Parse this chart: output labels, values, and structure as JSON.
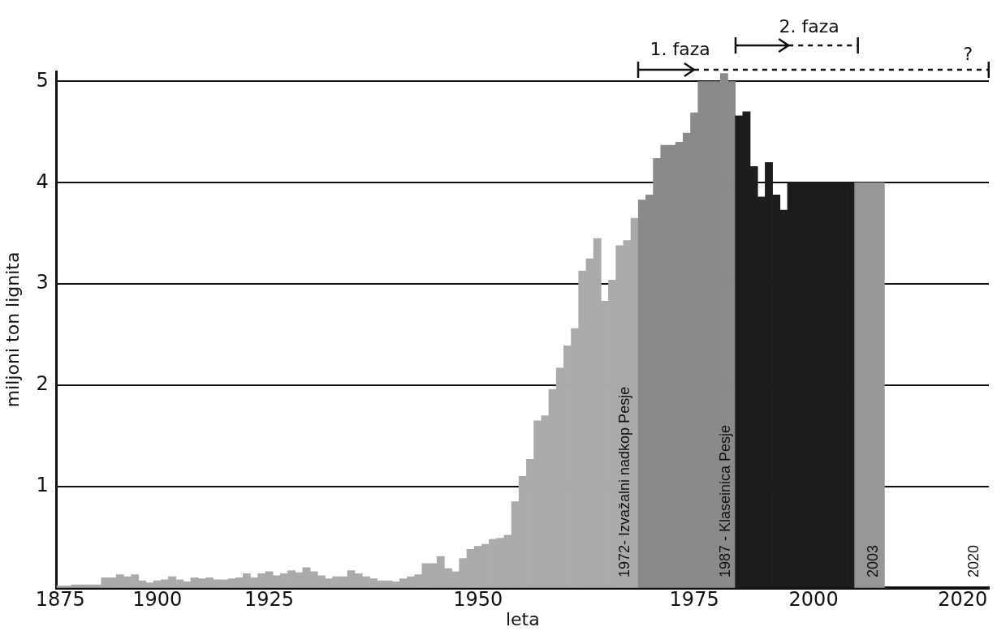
{
  "chart_data": {
    "type": "bar",
    "xlabel": "leta",
    "ylabel": "miljoni ton lignita",
    "categories": [
      "1875",
      null,
      null,
      null,
      null,
      null,
      null,
      null,
      null,
      null,
      null,
      null,
      null,
      "1900",
      null,
      null,
      null,
      null,
      null,
      null,
      null,
      null,
      null,
      null,
      null,
      null,
      null,
      null,
      "1925",
      null,
      null,
      null,
      null,
      null,
      null,
      null,
      null,
      null,
      null,
      null,
      null,
      null,
      null,
      null,
      null,
      null,
      null,
      null,
      null,
      null,
      null,
      null,
      null,
      null,
      null,
      null,
      "1950",
      null,
      null,
      null,
      null,
      null,
      null,
      null,
      null,
      null,
      null,
      null,
      null,
      null,
      null,
      null,
      null,
      null,
      null,
      null,
      null,
      null,
      null,
      null,
      null,
      null,
      null,
      null,
      null,
      "1975",
      null,
      null,
      null,
      null,
      null,
      null,
      null,
      null,
      null,
      null,
      null,
      null,
      null,
      null,
      null,
      "2000",
      null,
      null,
      null,
      null,
      null,
      null,
      null,
      null,
      null,
      null,
      null,
      null,
      null,
      null,
      null,
      null,
      null,
      null,
      null,
      "2020",
      null,
      null,
      null
    ],
    "values": [
      0.02,
      0.02,
      0.03,
      0.03,
      0.03,
      0.03,
      0.1,
      0.1,
      0.13,
      0.11,
      0.13,
      0.07,
      0.05,
      0.07,
      0.08,
      0.11,
      0.08,
      0.06,
      0.1,
      0.09,
      0.1,
      0.08,
      0.08,
      0.09,
      0.1,
      0.14,
      0.1,
      0.14,
      0.16,
      0.12,
      0.14,
      0.17,
      0.15,
      0.2,
      0.16,
      0.12,
      0.09,
      0.11,
      0.11,
      0.17,
      0.14,
      0.11,
      0.09,
      0.07,
      0.07,
      0.06,
      0.09,
      0.11,
      0.13,
      0.24,
      0.24,
      0.31,
      0.19,
      0.16,
      0.29,
      0.38,
      0.41,
      0.43,
      0.48,
      0.49,
      0.52,
      0.85,
      1.1,
      1.27,
      1.65,
      1.7,
      1.96,
      2.17,
      2.39,
      2.56,
      3.13,
      3.25,
      3.45,
      2.83,
      3.04,
      3.38,
      3.43,
      3.65,
      3.83,
      3.88,
      4.24,
      4.37,
      4.37,
      4.4,
      4.49,
      4.69,
      5.0,
      5.0,
      5.0,
      5.08,
      5.0,
      4.66,
      4.7,
      4.16,
      3.86,
      4.2,
      3.88,
      3.73,
      4.0,
      4.0,
      4.0,
      4.0,
      4.0,
      4.0,
      4.0,
      4.0,
      4.0,
      4.0,
      4.0,
      4.0,
      4.0,
      null,
      null,
      null,
      null,
      null,
      null,
      null,
      null,
      null,
      null,
      null,
      null,
      null,
      null
    ],
    "colors": [
      "#aaaaaa",
      "#aaaaaa",
      "#aaaaaa",
      "#aaaaaa",
      "#aaaaaa",
      "#aaaaaa",
      "#aaaaaa",
      "#aaaaaa",
      "#aaaaaa",
      "#aaaaaa",
      "#aaaaaa",
      "#aaaaaa",
      "#aaaaaa",
      "#aaaaaa",
      "#aaaaaa",
      "#aaaaaa",
      "#aaaaaa",
      "#aaaaaa",
      "#aaaaaa",
      "#aaaaaa",
      "#aaaaaa",
      "#aaaaaa",
      "#aaaaaa",
      "#aaaaaa",
      "#aaaaaa",
      "#aaaaaa",
      "#aaaaaa",
      "#aaaaaa",
      "#aaaaaa",
      "#aaaaaa",
      "#aaaaaa",
      "#aaaaaa",
      "#aaaaaa",
      "#aaaaaa",
      "#aaaaaa",
      "#aaaaaa",
      "#aaaaaa",
      "#aaaaaa",
      "#aaaaaa",
      "#aaaaaa",
      "#aaaaaa",
      "#aaaaaa",
      "#aaaaaa",
      "#aaaaaa",
      "#aaaaaa",
      "#aaaaaa",
      "#aaaaaa",
      "#aaaaaa",
      "#aaaaaa",
      "#aaaaaa",
      "#aaaaaa",
      "#aaaaaa",
      "#aaaaaa",
      "#aaaaaa",
      "#aaaaaa",
      "#aaaaaa",
      "#aaaaaa",
      "#aaaaaa",
      "#aaaaaa",
      "#aaaaaa",
      "#aaaaaa",
      "#aaaaaa",
      "#aaaaaa",
      "#aaaaaa",
      "#aaaaaa",
      "#aaaaaa",
      "#aaaaaa",
      "#aaaaaa",
      "#aaaaaa",
      "#aaaaaa",
      "#aaaaaa",
      "#aaaaaa",
      "#aaaaaa",
      "#aaaaaa",
      "#aaaaaa",
      "#aaaaaa",
      "#aaaaaa",
      "#aaaaaa",
      "#8a8a8a",
      "#8a8a8a",
      "#8a8a8a",
      "#8a8a8a",
      "#8a8a8a",
      "#8a8a8a",
      "#8a8a8a",
      "#8a8a8a",
      "#8a8a8a",
      "#8a8a8a",
      "#8a8a8a",
      "#8a8a8a",
      "#8a8a8a",
      "#1c1c1c",
      "#1c1c1c",
      "#1c1c1c",
      "#1c1c1c",
      "#1c1c1c",
      "#1c1c1c",
      "#1c1c1c",
      "#1c1c1c",
      "#1c1c1c",
      "#1c1c1c",
      "#1c1c1c",
      "#1c1c1c",
      "#1c1c1c",
      "#1c1c1c",
      "#1c1c1c",
      "#1c1c1c",
      "#969696",
      "#969696",
      "#969696",
      "#969696",
      null,
      null,
      null,
      null,
      null,
      null,
      null,
      null,
      null,
      null,
      null,
      null,
      null,
      null
    ],
    "ylim": [
      0,
      5.1
    ],
    "yticks": [
      1,
      2,
      3,
      4,
      5
    ],
    "grid": "y",
    "legend": false,
    "annotations": [
      "1. faza",
      "2. faza",
      "?",
      "1972- Izvažalni nadkop Pesje",
      "1987 - Klaseinica Pesje",
      "2003",
      "2020"
    ]
  }
}
